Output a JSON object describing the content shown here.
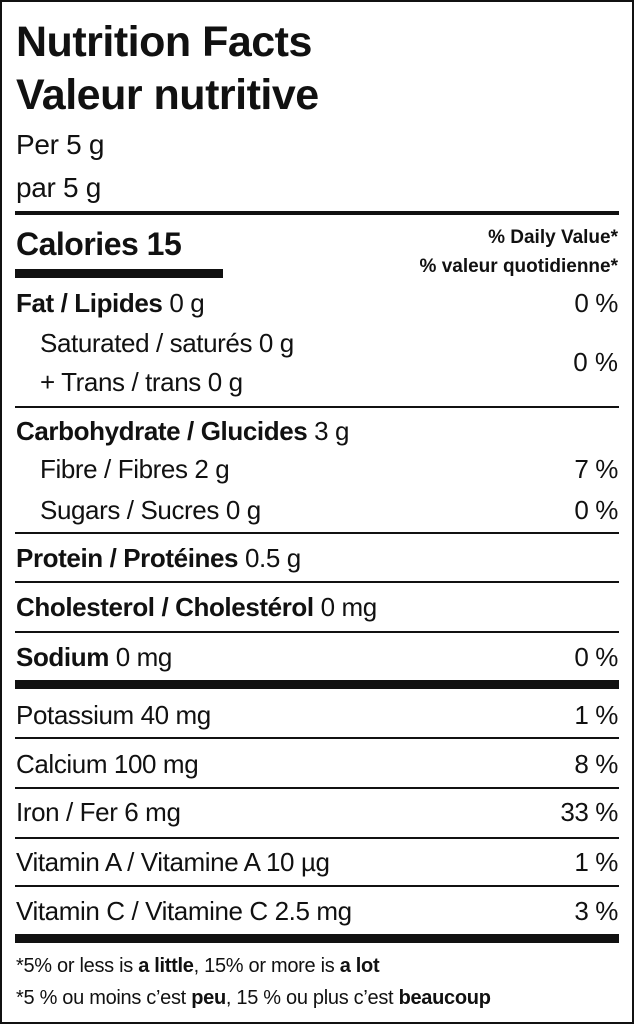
{
  "title_en": "Nutrition Facts",
  "title_fr": "Valeur nutritive",
  "serving_en": "Per 5 g",
  "serving_fr": "par 5 g",
  "calories": {
    "label": "Calories",
    "value": "15"
  },
  "daily_value_en": "% Daily Value*",
  "daily_value_fr": "% valeur quotidienne*",
  "fat": {
    "label": "Fat / Lipides",
    "amount": "0 g",
    "dv": "0 %"
  },
  "saturated": {
    "label": "Saturated / saturés",
    "amount": "0 g"
  },
  "trans": {
    "label": "+ Trans / trans",
    "amount": "0 g"
  },
  "sat_trans_dv": "0 %",
  "carbohydrate": {
    "label": "Carbohydrate / Glucides",
    "amount": "3 g"
  },
  "fibre": {
    "label": "Fibre / Fibres",
    "amount": "2 g",
    "dv": "7 %"
  },
  "sugars": {
    "label": "Sugars / Sucres",
    "amount": "0 g",
    "dv": "0 %"
  },
  "protein": {
    "label": "Protein / Protéines",
    "amount": "0.5 g"
  },
  "cholesterol": {
    "label": "Cholesterol / Cholestérol",
    "amount": "0 mg"
  },
  "sodium": {
    "label": "Sodium",
    "amount": "0 mg",
    "dv": "0 %"
  },
  "minerals": [
    {
      "label": "Potassium 40 mg",
      "dv": "1 %"
    },
    {
      "label": "Calcium 100 mg",
      "dv": "8 %"
    },
    {
      "label": "Iron / Fer 6 mg",
      "dv": "33 %"
    },
    {
      "label": "Vitamin A / Vitamine A 10 µg",
      "dv": "1 %"
    },
    {
      "label": "Vitamin C / Vitamine C 2.5 mg",
      "dv": "3 %"
    }
  ],
  "footnote_en": {
    "a": "*5% or less is ",
    "b": "a little",
    "c": ", 15% or more is ",
    "d": "a lot"
  },
  "footnote_fr": {
    "a": "*5 % ou moins c’est ",
    "b": "peu",
    "c": ", 15 % ou plus c’est ",
    "d": "beaucoup"
  }
}
